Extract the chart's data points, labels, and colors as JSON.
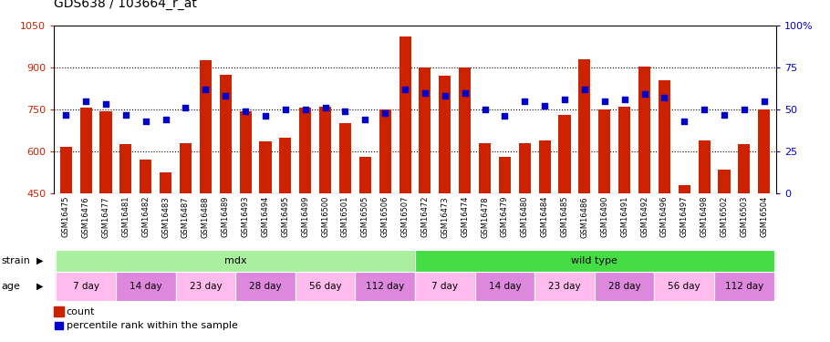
{
  "title": "GDS638 / 103664_r_at",
  "samples": [
    "GSM16475",
    "GSM16476",
    "GSM16477",
    "GSM16481",
    "GSM16482",
    "GSM16483",
    "GSM16487",
    "GSM16488",
    "GSM16489",
    "GSM16493",
    "GSM16494",
    "GSM16495",
    "GSM16499",
    "GSM16500",
    "GSM16501",
    "GSM16505",
    "GSM16506",
    "GSM16507",
    "GSM16472",
    "GSM16473",
    "GSM16474",
    "GSM16478",
    "GSM16479",
    "GSM16480",
    "GSM16484",
    "GSM16485",
    "GSM16486",
    "GSM16490",
    "GSM16491",
    "GSM16492",
    "GSM16496",
    "GSM16497",
    "GSM16498",
    "GSM16502",
    "GSM16503",
    "GSM16504"
  ],
  "counts": [
    615,
    755,
    745,
    625,
    570,
    525,
    630,
    925,
    875,
    745,
    635,
    650,
    755,
    760,
    700,
    580,
    750,
    1010,
    900,
    870,
    900,
    630,
    580,
    630,
    640,
    730,
    930,
    750,
    760,
    905,
    855,
    480,
    640,
    535,
    625,
    750
  ],
  "percentile": [
    47,
    55,
    53,
    47,
    43,
    44,
    51,
    62,
    58,
    49,
    46,
    50,
    50,
    51,
    49,
    44,
    48,
    62,
    60,
    58,
    60,
    50,
    46,
    55,
    52,
    56,
    62,
    55,
    56,
    59,
    57,
    43,
    50,
    47,
    50,
    55
  ],
  "ylim_left": [
    450,
    1050
  ],
  "ylim_right": [
    0,
    100
  ],
  "yticks_left": [
    450,
    600,
    750,
    900,
    1050
  ],
  "yticks_right": [
    0,
    25,
    50,
    75,
    100
  ],
  "bar_color": "#cc2200",
  "dot_color": "#0000cc",
  "grid_color": "#000000",
  "bg_color": "#ffffff",
  "xtick_bg_color": "#cccccc",
  "strain_groups": [
    {
      "label": "mdx",
      "start": 0,
      "end": 18,
      "color": "#aaeea0"
    },
    {
      "label": "wild type",
      "start": 18,
      "end": 36,
      "color": "#44dd44"
    }
  ],
  "age_groups": [
    {
      "label": "7 day",
      "start": 0,
      "end": 3,
      "color": "#ffbbee"
    },
    {
      "label": "14 day",
      "start": 3,
      "end": 6,
      "color": "#dd88dd"
    },
    {
      "label": "23 day",
      "start": 6,
      "end": 9,
      "color": "#ffbbee"
    },
    {
      "label": "28 day",
      "start": 9,
      "end": 12,
      "color": "#dd88dd"
    },
    {
      "label": "56 day",
      "start": 12,
      "end": 15,
      "color": "#ffbbee"
    },
    {
      "label": "112 day",
      "start": 15,
      "end": 18,
      "color": "#dd88dd"
    },
    {
      "label": "7 day",
      "start": 18,
      "end": 21,
      "color": "#ffbbee"
    },
    {
      "label": "14 day",
      "start": 21,
      "end": 24,
      "color": "#dd88dd"
    },
    {
      "label": "23 day",
      "start": 24,
      "end": 27,
      "color": "#ffbbee"
    },
    {
      "label": "28 day",
      "start": 27,
      "end": 30,
      "color": "#dd88dd"
    },
    {
      "label": "56 day",
      "start": 30,
      "end": 33,
      "color": "#ffbbee"
    },
    {
      "label": "112 day",
      "start": 33,
      "end": 36,
      "color": "#dd88dd"
    }
  ],
  "legend_count_color": "#cc2200",
  "legend_dot_color": "#0000cc",
  "left_axis_color": "#cc2200",
  "right_axis_color": "#0000cc"
}
